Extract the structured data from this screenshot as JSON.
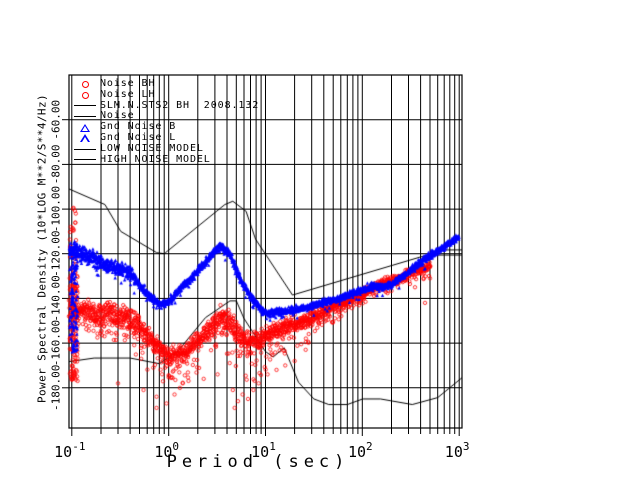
{
  "page": {
    "background": "#ffffff"
  },
  "chart_data": {
    "type": "scatter",
    "title": "SLM.N.STS2 BH  2008.132",
    "xlabel": "Period (sec)",
    "ylabel": "Power Spectral Density (10*LOG M**2/S**4/Hz)",
    "grid": true,
    "x_axis": {
      "scale": "log",
      "min": 0.0935,
      "max": 1070,
      "ticks": [
        {
          "value": 0.1,
          "base": "10",
          "exp": "-1"
        },
        {
          "value": 1,
          "base": "10",
          "exp": "0"
        },
        {
          "value": 10,
          "base": "10",
          "exp": "1"
        },
        {
          "value": 100,
          "base": "10",
          "exp": "2"
        },
        {
          "value": 1000,
          "base": "10",
          "exp": "3"
        }
      ]
    },
    "y_axis": {
      "min": -198,
      "max": -40,
      "ticks": [
        {
          "value": -60,
          "label": "-60.00"
        },
        {
          "value": -80,
          "label": "-80.00"
        },
        {
          "value": -100,
          "label": "-100.00"
        },
        {
          "value": -120,
          "label": "-120.00"
        },
        {
          "value": -140,
          "label": "-140.00"
        },
        {
          "value": -160,
          "label": "-160.00"
        },
        {
          "value": -180,
          "label": "-180.00"
        }
      ]
    },
    "colors": {
      "grid": "#000000",
      "frame": "#000000",
      "red_series": "#ff0000",
      "blue_series": "#0000ff",
      "model": "#000000"
    },
    "legend": [
      {
        "symbol": "circle",
        "color": "#ff0000",
        "label": "Noise BH"
      },
      {
        "symbol": "circle",
        "color": "#ff0000",
        "label": "Noise LH"
      },
      {
        "symbol": "line",
        "color": "#000000",
        "label": "SLM.N.STS2 BH  2008.132"
      },
      {
        "symbol": "line",
        "color": "#000000",
        "label": "Noise"
      },
      {
        "symbol": "triangle",
        "color": "#0000ff",
        "label": "Gnd Noise B"
      },
      {
        "symbol": "triangle",
        "color": "#0000ff",
        "label": "Gnd Noise L"
      },
      {
        "symbol": "line",
        "color": "#000000",
        "label": "LOW NOISE MODEL"
      },
      {
        "symbol": "line",
        "color": "#000000",
        "label": "HIGH NOISE MODEL"
      }
    ],
    "seed": 1234,
    "series": [
      {
        "name": "high-noise-model",
        "type": "line",
        "color": "#000000",
        "points": [
          [
            0.0935,
            -91
          ],
          [
            0.22,
            -98
          ],
          [
            0.32,
            -110
          ],
          [
            0.75,
            -119.5
          ],
          [
            0.9,
            -120
          ],
          [
            3.8,
            -98
          ],
          [
            4.6,
            -96.5
          ],
          [
            6.3,
            -101
          ],
          [
            7.9,
            -113.5
          ],
          [
            19,
            -138.5
          ],
          [
            700,
            -118.3
          ],
          [
            1070,
            -118.3
          ]
        ]
      },
      {
        "name": "low-noise-model",
        "type": "line",
        "color": "#000000",
        "points": [
          [
            0.0935,
            -168.3
          ],
          [
            0.17,
            -166.7
          ],
          [
            0.4,
            -166.7
          ],
          [
            0.8,
            -169.2
          ],
          [
            1.24,
            -163.7
          ],
          [
            2.4,
            -148.6
          ],
          [
            4.3,
            -141.1
          ],
          [
            5,
            -141.1
          ],
          [
            6,
            -149
          ],
          [
            10,
            -163.8
          ],
          [
            12,
            -166.2
          ],
          [
            15.6,
            -162.1
          ],
          [
            21.9,
            -177.5
          ],
          [
            31.6,
            -185
          ],
          [
            45,
            -187.5
          ],
          [
            70,
            -187.5
          ],
          [
            101,
            -185
          ],
          [
            154,
            -185
          ],
          [
            328,
            -187.5
          ],
          [
            600,
            -184.4
          ],
          [
            1070,
            -175.5
          ]
        ]
      },
      {
        "name": "station-noise-line",
        "type": "line",
        "color": "#000000",
        "points": [
          [
            20,
            -151.5
          ],
          [
            30,
            -148.5
          ],
          [
            40,
            -146
          ],
          [
            55,
            -143.5
          ],
          [
            70,
            -141.5
          ],
          [
            90,
            -139
          ],
          [
            120,
            -136.5
          ],
          [
            160,
            -134
          ],
          [
            210,
            -131.5
          ],
          [
            270,
            -128.5
          ],
          [
            350,
            -125
          ],
          [
            430,
            -121.5
          ],
          [
            480,
            -120.6
          ],
          [
            1070,
            -120.6
          ]
        ]
      },
      {
        "name": "noise-bh-lh",
        "type": "scatter",
        "marker": "circle",
        "color": "#ff0000",
        "density": 2,
        "backbone": [
          [
            0.095,
            -146
          ],
          [
            0.13,
            -145
          ],
          [
            0.18,
            -146
          ],
          [
            0.25,
            -147
          ],
          [
            0.35,
            -148.5
          ],
          [
            0.45,
            -151
          ],
          [
            0.55,
            -155
          ],
          [
            0.7,
            -160
          ],
          [
            0.85,
            -163.5
          ],
          [
            1.0,
            -166
          ],
          [
            1.3,
            -165
          ],
          [
            1.7,
            -161.5
          ],
          [
            2.2,
            -157
          ],
          [
            2.8,
            -152.5
          ],
          [
            3.6,
            -147.5
          ],
          [
            4.5,
            -152
          ],
          [
            5.5,
            -157
          ],
          [
            7,
            -159.5
          ],
          [
            9,
            -158.5
          ],
          [
            11,
            -156
          ],
          [
            14,
            -153.5
          ],
          [
            18,
            -152
          ],
          [
            23,
            -150.5
          ],
          [
            30,
            -148.5
          ],
          [
            38,
            -146.5
          ],
          [
            48,
            -144.5
          ],
          [
            60,
            -142.5
          ],
          [
            77,
            -140.5
          ],
          [
            98,
            -138.5
          ],
          [
            124,
            -136
          ],
          [
            158,
            -133.5
          ],
          [
            200,
            -132
          ],
          [
            254,
            -130.5
          ],
          [
            320,
            -128.5
          ],
          [
            400,
            -127
          ],
          [
            500,
            -125.5
          ]
        ],
        "sigma": [
          [
            0.09,
            0.5,
            3.2
          ],
          [
            0.5,
            3,
            2.6
          ],
          [
            3,
            10,
            3.2
          ],
          [
            10,
            40,
            2.4
          ],
          [
            40,
            1100,
            1.4
          ]
        ],
        "tails": [
          [
            0.09,
            0.45,
            0.3,
            10
          ],
          [
            0.45,
            2.2,
            0.35,
            14
          ],
          [
            2.2,
            4,
            0.3,
            9
          ],
          [
            4,
            10,
            0.35,
            16
          ],
          [
            10,
            30,
            0.3,
            10
          ],
          [
            30,
            80,
            0.25,
            5
          ],
          [
            80,
            1100,
            0.15,
            3
          ]
        ],
        "columns": [
          {
            "p": [
              0.095,
              0.112
            ],
            "v": [
              -99,
              -130
            ],
            "count": 28
          },
          {
            "p": [
              0.095,
              0.115
            ],
            "v": [
              -128,
              -177
            ],
            "count": 150
          }
        ],
        "outliers": [
          [
            0.3,
            -178
          ],
          [
            0.55,
            -181
          ],
          [
            0.75,
            -184
          ],
          [
            0.95,
            -187
          ],
          [
            0.75,
            -189
          ],
          [
            1.15,
            -183
          ],
          [
            1.4,
            -178
          ],
          [
            2.3,
            -176
          ],
          [
            3.2,
            -174
          ],
          [
            4.6,
            -181
          ],
          [
            4.8,
            -189
          ],
          [
            5.2,
            -186
          ],
          [
            5.8,
            -183
          ],
          [
            6.6,
            -185
          ],
          [
            7.5,
            -181
          ],
          [
            8.5,
            -178
          ],
          [
            10.5,
            -174
          ],
          [
            13,
            -172
          ],
          [
            16,
            -170
          ],
          [
            20,
            -168
          ],
          [
            26,
            -163
          ],
          [
            444,
            -142
          ],
          [
            350,
            -135
          ],
          [
            500,
            -131
          ]
        ]
      },
      {
        "name": "gnd-noise-b-l",
        "type": "scatter",
        "marker": "triangle",
        "color": "#0000ff",
        "density": 3,
        "backbone": [
          [
            0.095,
            -118.5
          ],
          [
            0.12,
            -119.5
          ],
          [
            0.15,
            -121
          ],
          [
            0.2,
            -123.5
          ],
          [
            0.25,
            -125.5
          ],
          [
            0.32,
            -127
          ],
          [
            0.4,
            -128.5
          ],
          [
            0.5,
            -134
          ],
          [
            0.65,
            -139.5
          ],
          [
            0.8,
            -142.5
          ],
          [
            1.0,
            -141.5
          ],
          [
            1.3,
            -136
          ],
          [
            1.7,
            -131
          ],
          [
            2.1,
            -126.5
          ],
          [
            2.7,
            -121
          ],
          [
            3.4,
            -116.5
          ],
          [
            4.2,
            -119.5
          ],
          [
            5.0,
            -127
          ],
          [
            5.5,
            -131.5
          ],
          [
            7,
            -139
          ],
          [
            9,
            -145
          ],
          [
            11,
            -146.5
          ],
          [
            14,
            -146
          ],
          [
            18,
            -145.5
          ],
          [
            23,
            -144.5
          ],
          [
            30,
            -143.5
          ],
          [
            38,
            -142
          ],
          [
            48,
            -141
          ],
          [
            60,
            -139.5
          ],
          [
            77,
            -138
          ],
          [
            98,
            -136.5
          ],
          [
            124,
            -134.5
          ],
          [
            160,
            -134.8
          ],
          [
            200,
            -133.8
          ],
          [
            254,
            -130.5
          ],
          [
            323,
            -127
          ],
          [
            410,
            -123.5
          ],
          [
            520,
            -120.5
          ],
          [
            660,
            -117.5
          ],
          [
            840,
            -114.5
          ],
          [
            1000,
            -112.5
          ]
        ],
        "sigma": [
          [
            0.09,
            0.45,
            2.0
          ],
          [
            0.45,
            6,
            1.1
          ],
          [
            6,
            1100,
            1.0
          ]
        ],
        "tails": [
          [
            0.09,
            0.45,
            0.15,
            5
          ],
          [
            0.45,
            1100,
            0.05,
            2.5
          ]
        ],
        "columns": [
          {
            "p": [
              0.095,
              0.115
            ],
            "v": [
              -114,
              -164
            ],
            "count": 150
          }
        ],
        "outliers": []
      }
    ]
  }
}
